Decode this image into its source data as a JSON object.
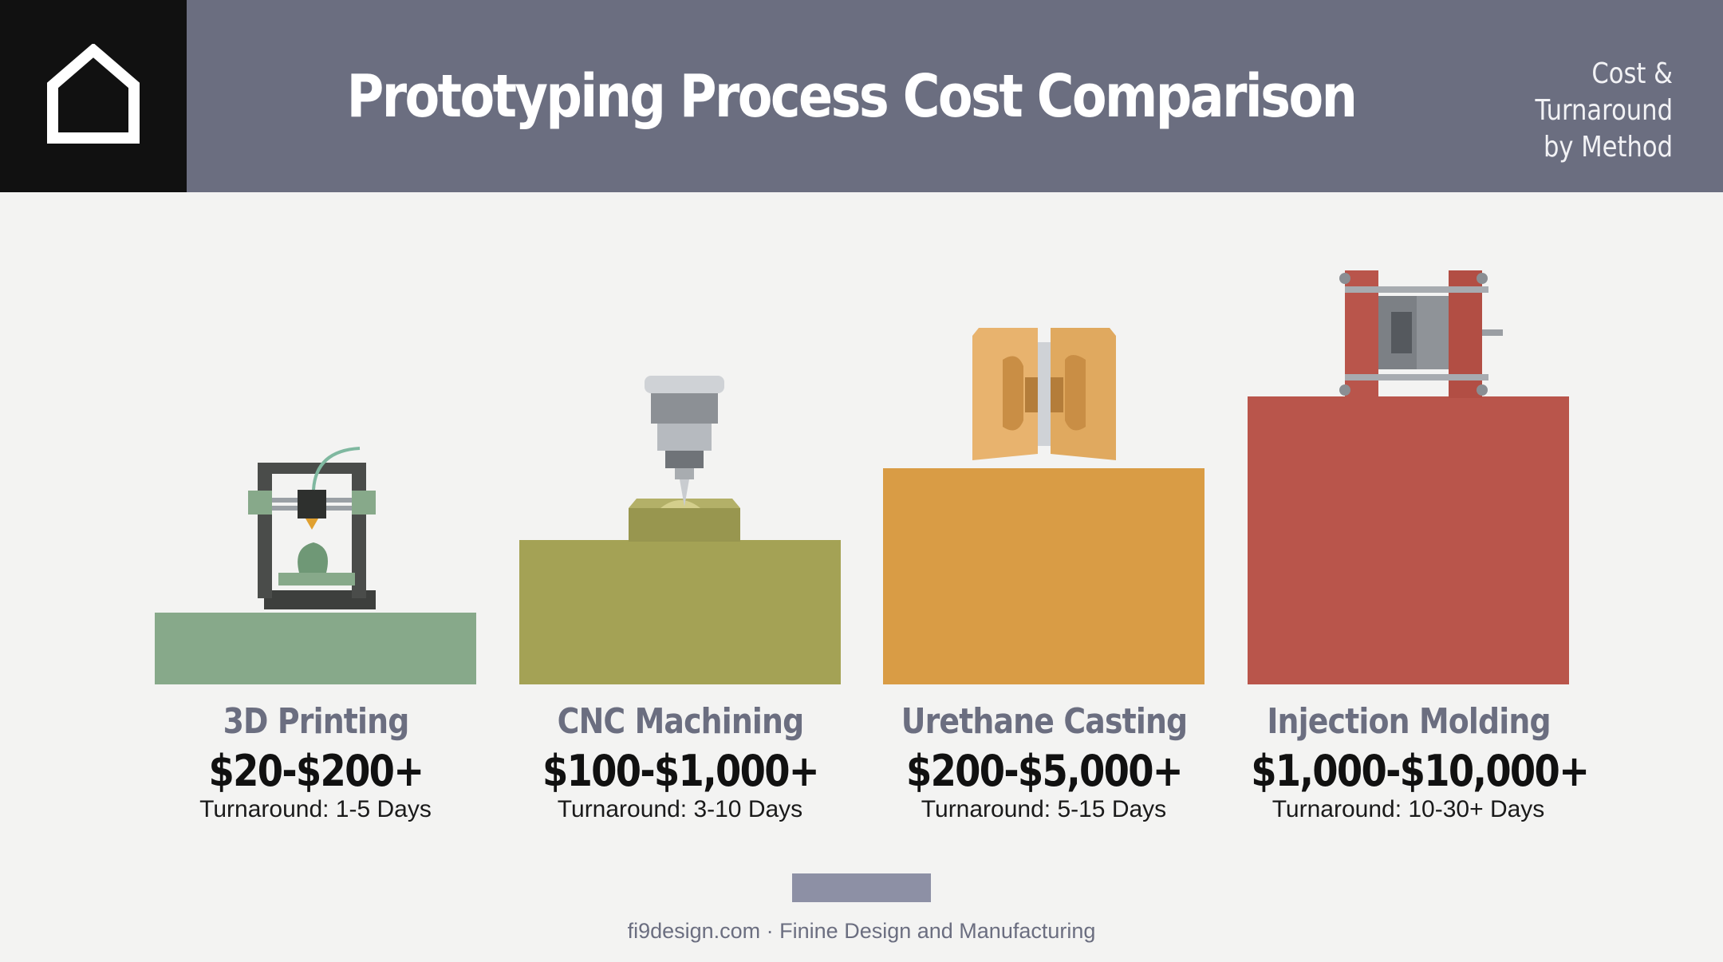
{
  "header": {
    "title": "Prototyping Process Cost Comparison",
    "subtitle_line1": "Cost & Turnaround",
    "subtitle_line2": "by Method",
    "logo_icon": "house-outline-icon",
    "colors": {
      "header_bg": "#6b6e80",
      "logo_bg": "#111111"
    }
  },
  "chart_data": {
    "type": "bar",
    "categories": [
      "3D Printing",
      "CNC Machining",
      "Urethane Casting",
      "Injection Molding"
    ],
    "prices": [
      "$20-$200+",
      "$100-$1,000+",
      "$200-$5,000+",
      "$1,000-$10,000+"
    ],
    "turnarounds": [
      "Turnaround: 1-5 Days",
      "Turnaround: 3-10 Days",
      "Turnaround: 5-15 Days",
      "Turnaround: 10-30+ Days"
    ],
    "relative_bar_heights": [
      0.25,
      0.5,
      0.75,
      1.0
    ],
    "colors": [
      "#87a98a",
      "#a4a255",
      "#d99c45",
      "#b9554b"
    ],
    "icons": [
      "3d-printer-icon",
      "cnc-spindle-icon",
      "urethane-mold-icon",
      "injection-mold-icon"
    ]
  },
  "footer": {
    "text": "fi9design.com · Finine Design and Manufacturing"
  }
}
